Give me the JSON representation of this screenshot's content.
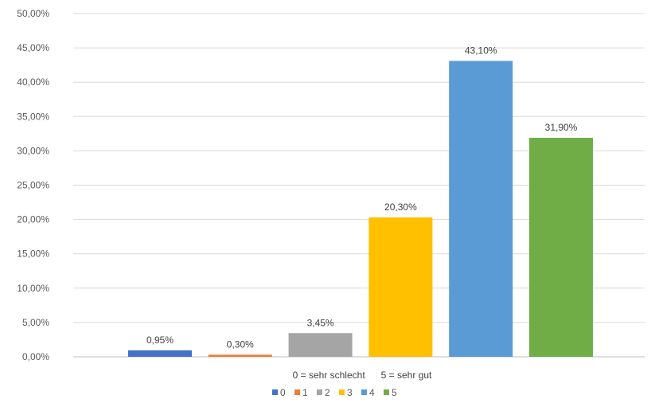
{
  "chart_data": {
    "type": "bar",
    "title": "",
    "xlabel": "0 = sehr schlecht      5 = sehr gut",
    "ylabel": "",
    "ylim": [
      0,
      50
    ],
    "y_ticks": [
      0,
      5,
      10,
      15,
      20,
      25,
      30,
      35,
      40,
      45,
      50
    ],
    "y_tick_labels": [
      "0,00%",
      "5,00%",
      "10,00%",
      "15,00%",
      "20,00%",
      "25,00%",
      "30,00%",
      "35,00%",
      "40,00%",
      "45,00%",
      "50,00%"
    ],
    "grid": true,
    "legend_position": "bottom",
    "series": [
      {
        "name": "0",
        "value": 0.95,
        "label": "0,95%",
        "color": "#4472C4"
      },
      {
        "name": "1",
        "value": 0.3,
        "label": "0,30%",
        "color": "#ED7D31"
      },
      {
        "name": "2",
        "value": 3.45,
        "label": "3,45%",
        "color": "#A5A5A5"
      },
      {
        "name": "3",
        "value": 20.3,
        "label": "20,30%",
        "color": "#FFC000"
      },
      {
        "name": "4",
        "value": 43.1,
        "label": "43,10%",
        "color": "#5B9BD5"
      },
      {
        "name": "5",
        "value": 31.9,
        "label": "31,90%",
        "color": "#70AD47"
      }
    ]
  }
}
